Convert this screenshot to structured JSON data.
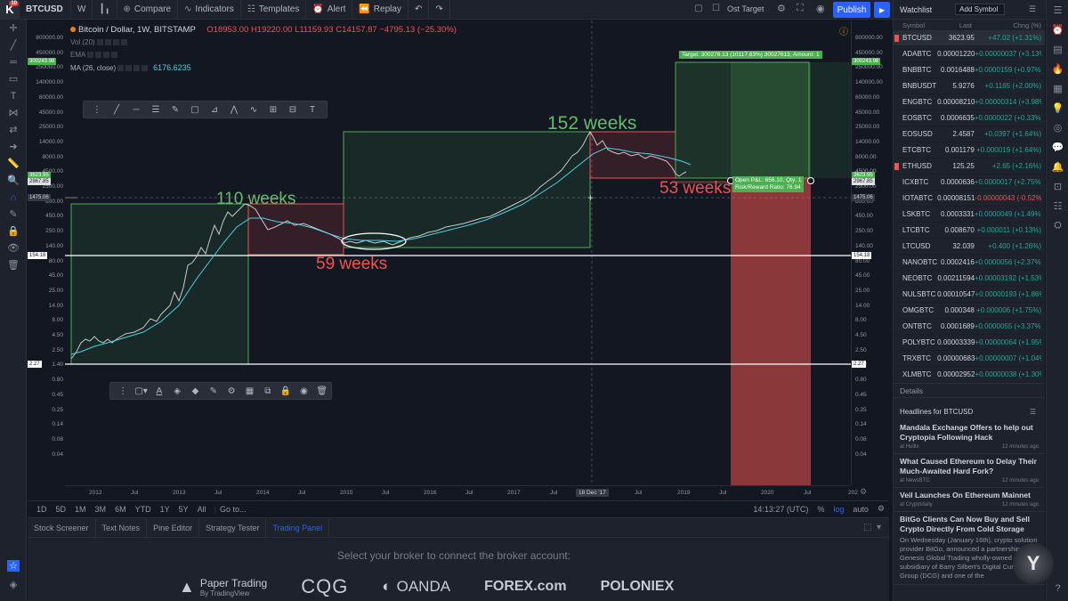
{
  "topbar": {
    "logo_badge": "10",
    "symbol": "BTCUSD",
    "interval": "W",
    "compare": "Compare",
    "indicators": "Indicators",
    "templates": "Templates",
    "alert": "Alert",
    "replay": "Replay",
    "ost_target": "Ost Target",
    "publish": "Publish"
  },
  "legend": {
    "title": "Bitcoin / Dollar, 1W, BITSTAMP",
    "open": "O18953.00",
    "high": "H19220.00",
    "low": "L11159.93",
    "close": "C14157.87",
    "change": "−4795.13 (−25.30%)",
    "vol": "Vol (20)",
    "ema": "EMA",
    "ma": "MA (26, close)",
    "ma_value": "6176.6235"
  },
  "annotations": {
    "w110": "110 weeks",
    "w152": "152 weeks",
    "w59": "59 weeks",
    "w53": "53 weeks",
    "target": "Target: 300276.13 (10117.63%) 30027613, Amount: 1",
    "pnl": "Open P&L: 656.10, Qty: 1",
    "rr": "Risk/Reward Ratio: 76.94"
  },
  "right_axis": [
    "800000.00",
    "450000.00",
    "250000.00",
    "140000.00",
    "80000.00",
    "45000.00",
    "25000.00",
    "14000.00",
    "8000.00",
    "4500.00",
    "2500.00",
    "800.00",
    "450.00",
    "250.00",
    "140.00",
    "80.00",
    "45.00",
    "25.00",
    "14.00",
    "8.00",
    "4.50",
    "2.50",
    "1.40",
    "0.80",
    "0.45",
    "0.25",
    "0.14",
    "0.08",
    "0.04"
  ],
  "left_axis": [
    "800000.00",
    "450000.00",
    "250000.00",
    "140000.00",
    "80000.00",
    "45000.00",
    "25000.00",
    "14000.00",
    "8000.00",
    "4500.00",
    "2500.00",
    "800.00",
    "450.00",
    "250.00",
    "140.00",
    "80.00",
    "45.00",
    "25.00",
    "14.00",
    "8.00",
    "4.50",
    "2.50",
    "1.40",
    "0.80",
    "0.45",
    "0.25",
    "0.14",
    "0.08",
    "0.04"
  ],
  "price_tags": {
    "target_right": "300243.98",
    "target_left": "300243.98",
    "current_a": "3623.95",
    "current_b": "2967.85",
    "level_1475": "1475.06",
    "level_154": "154.18",
    "level_227": "2.27"
  },
  "x_axis": [
    "2012",
    "Jul",
    "2013",
    "Jul",
    "2014",
    "Jul",
    "2015",
    "Jul",
    "2016",
    "Jul",
    "2017",
    "Jul",
    "Jul",
    "2019",
    "Jul",
    "2020",
    "Jul",
    "202"
  ],
  "cursor_date": "18 Dec '17",
  "bottombar": {
    "ranges": [
      "1D",
      "5D",
      "1M",
      "3M",
      "6M",
      "YTD",
      "1Y",
      "5Y",
      "All"
    ],
    "goto": "Go to...",
    "time": "14:13:27 (UTC)",
    "pct": "%",
    "log": "log",
    "auto": "auto"
  },
  "panel": {
    "tabs": [
      "Stock Screener",
      "Text Notes",
      "Pine Editor",
      "Strategy Tester",
      "Trading Panel"
    ],
    "message": "Select your broker to connect the broker account:",
    "brokers": [
      "Paper Trading",
      "CQG",
      "OANDA",
      "FOREX.com",
      "POLONIEX"
    ],
    "paper_sub": "By TradingView"
  },
  "watchlist": {
    "title": "Watchlist",
    "add": "Add Symbol",
    "cols": [
      "Symbol",
      "Last",
      "Chng (%)"
    ],
    "rows": [
      {
        "sym": "BTCUSD",
        "last": "3623.95",
        "chg": "+47.02 (+1.31%)",
        "dir": "up"
      },
      {
        "sym": "ADABTC",
        "last": "0.00001220",
        "chg": "+0.00000037 (+3.13%",
        "dir": "up"
      },
      {
        "sym": "BNBBTC",
        "last": "0.0016488",
        "chg": "+0.0000159 (+0.97%)",
        "dir": "up"
      },
      {
        "sym": "BNBUSDT",
        "last": "5.9276",
        "chg": "+0.1165 (+2.00%)",
        "dir": "up"
      },
      {
        "sym": "ENGBTC",
        "last": "0.00008210",
        "chg": "+0.00000314 (+3.98%",
        "dir": "up"
      },
      {
        "sym": "EOSBTC",
        "last": "0.0006635",
        "chg": "+0.0000022 (+0.33%)",
        "dir": "up"
      },
      {
        "sym": "EOSUSD",
        "last": "2.4587",
        "chg": "+0.0397 (+1.64%)",
        "dir": "up"
      },
      {
        "sym": "ETCBTC",
        "last": "0.001179",
        "chg": "+0.000019 (+1.64%)",
        "dir": "up"
      },
      {
        "sym": "ETHUSD",
        "last": "125.25",
        "chg": "+2.65 (+2.16%)",
        "dir": "up"
      },
      {
        "sym": "ICXBTC",
        "last": "0.0000636",
        "chg": "+0.0000017 (+2.75%)",
        "dir": "up"
      },
      {
        "sym": "IOTABTC",
        "last": "0.00008151",
        "chg": "-0.00000043 (-0.52%)",
        "dir": "dn"
      },
      {
        "sym": "LSKBTC",
        "last": "0.0003331",
        "chg": "+0.0000049 (+1.49%)",
        "dir": "up"
      },
      {
        "sym": "LTCBTC",
        "last": "0.008670",
        "chg": "+0.000011 (+0.13%)",
        "dir": "up"
      },
      {
        "sym": "LTCUSD",
        "last": "32.039",
        "chg": "+0.400 (+1.26%)",
        "dir": "up"
      },
      {
        "sym": "NANOBTC",
        "last": "0.0002416",
        "chg": "+0.0000056 (+2.37%)",
        "dir": "up"
      },
      {
        "sym": "NEOBTC",
        "last": "0.00211594",
        "chg": "+0.00003192 (+1.53%",
        "dir": "up"
      },
      {
        "sym": "NULSBTC",
        "last": "0.00010547",
        "chg": "+0.00000193 (+1.86%",
        "dir": "up"
      },
      {
        "sym": "OMGBTC",
        "last": "0.000348",
        "chg": "+0.000006 (+1.75%)",
        "dir": "up"
      },
      {
        "sym": "ONTBTC",
        "last": "0.0001689",
        "chg": "+0.0000055 (+3.37%)",
        "dir": "up"
      },
      {
        "sym": "POLYBTC",
        "last": "0.00003339",
        "chg": "+0.00000064 (+1.95%",
        "dir": "up"
      },
      {
        "sym": "TRXBTC",
        "last": "0.00000683",
        "chg": "+0.00000007 (+1.04%",
        "dir": "up"
      },
      {
        "sym": "XLMBTC",
        "last": "0.00002952",
        "chg": "+0.00000038 (+1.30%",
        "dir": "up"
      }
    ],
    "details": "Details",
    "news_head": "Headlines for BTCUSD",
    "news": [
      {
        "title": "Mandala Exchange Offers to help out Cryptopia Following Hack",
        "src": "at Hulltx",
        "time": "12 minutes ago"
      },
      {
        "title": "What Caused Ethereum to Delay Their Much-Awaited Hard Fork?",
        "src": "at NewsBTC",
        "time": "12 minutes ago"
      },
      {
        "title": "Veil Launches On Ethereum Mainnet",
        "src": "at Cryptodaily",
        "time": "12 minutes ago"
      },
      {
        "title": "BitGo Clients Can Now Buy and Sell Crypto Directly From Cold Storage",
        "body": "On Wednesday (January 16th), crypto solution provider BitGo, announced a partnership with Genesis Global Trading wholly-owned subsidiary of Barry Silbert's Digital Currency Group (DCG) and one of the"
      }
    ]
  },
  "colors": {
    "green_box": "#4caf50",
    "red_box": "#ef5350",
    "ma_line": "#4dd0e1",
    "accent": "#2962ff"
  }
}
